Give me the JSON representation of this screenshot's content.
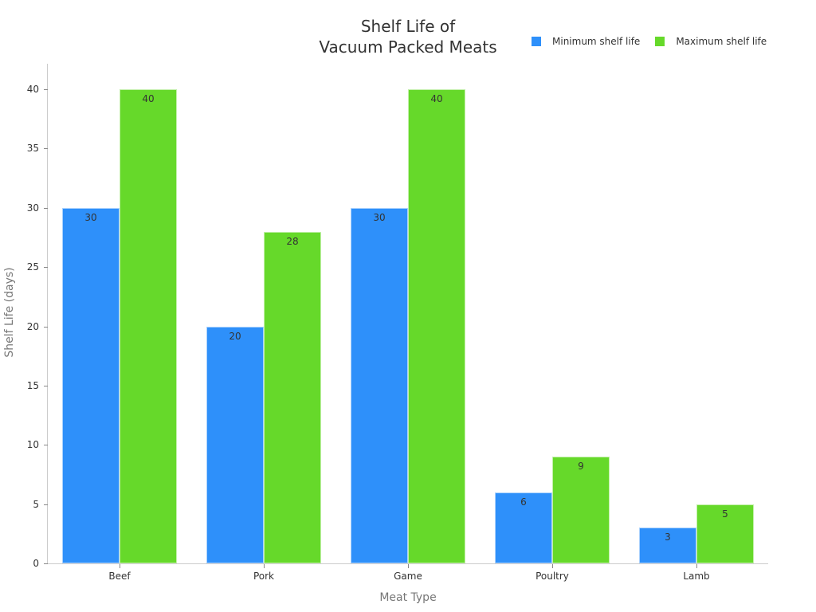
{
  "chart_data": {
    "type": "bar",
    "title": "Shelf Life of\nVacuum Packed Meats",
    "title_lines": [
      "Shelf Life of",
      "Vacuum Packed Meats"
    ],
    "xlabel": "Meat Type",
    "ylabel": "Shelf Life (days)",
    "categories": [
      "Beef",
      "Pork",
      "Game",
      "Poultry",
      "Lamb"
    ],
    "series": [
      {
        "name": "Minimum shelf life",
        "color": "#2e90fa",
        "values": [
          30,
          20,
          30,
          6,
          3
        ]
      },
      {
        "name": "Maximum shelf life",
        "color": "#66d92a",
        "values": [
          40,
          28,
          40,
          9,
          5
        ]
      }
    ],
    "ylim": [
      0,
      42
    ],
    "yticks": [
      0,
      5,
      10,
      15,
      20,
      25,
      30,
      35,
      40
    ],
    "grid": false,
    "legend_position": "top-right",
    "data_labels": true
  }
}
